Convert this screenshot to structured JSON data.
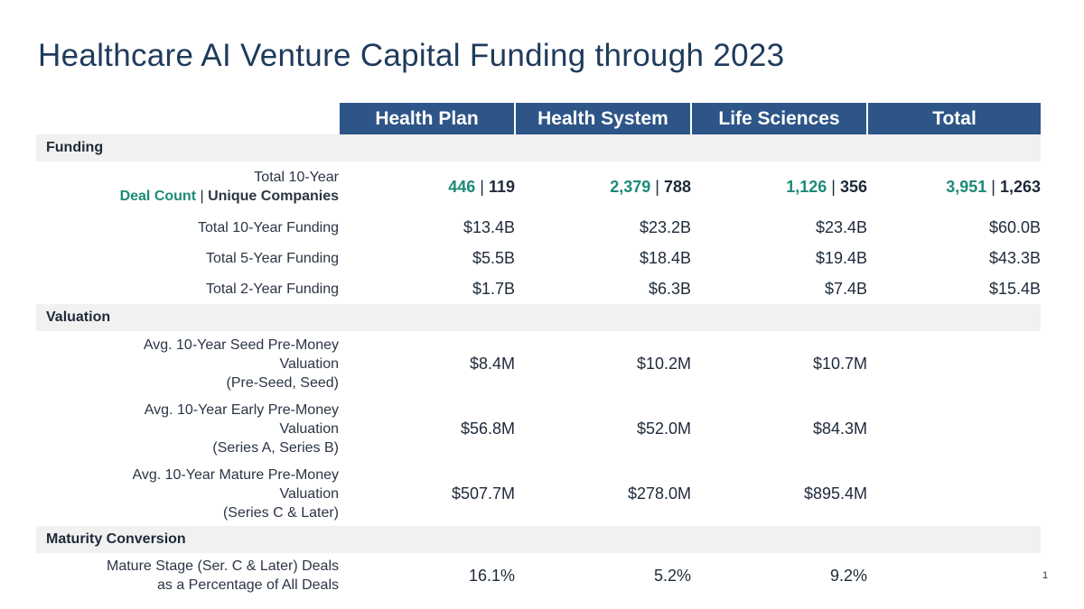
{
  "title": "Healthcare AI Venture Capital Funding through 2023",
  "page_number": "1",
  "colors": {
    "header_bg": "#2e5587",
    "accent_green": "#1d8a78",
    "section_bg": "#f1f1f1",
    "title": "#1f3b5c"
  },
  "columns": [
    "Health Plan",
    "Health System",
    "Life Sciences",
    "Total"
  ],
  "separator": "|",
  "sections": {
    "funding": "Funding",
    "valuation": "Valuation",
    "maturity": "Maturity Conversion"
  },
  "deal_row": {
    "label_line1": "Total 10-Year",
    "label_deal_count": "Deal Count",
    "label_unique": "Unique Companies",
    "values": [
      {
        "deals": "446",
        "companies": "119"
      },
      {
        "deals": "2,379",
        "companies": "788"
      },
      {
        "deals": "1,126",
        "companies": "356"
      },
      {
        "deals": "3,951",
        "companies": "1,263"
      }
    ]
  },
  "funding_rows": [
    {
      "label": "Total 10-Year Funding",
      "values": [
        "$13.4B",
        "$23.2B",
        "$23.4B",
        "$60.0B"
      ]
    },
    {
      "label": "Total 5-Year Funding",
      "values": [
        "$5.5B",
        "$18.4B",
        "$19.4B",
        "$43.3B"
      ]
    },
    {
      "label": "Total 2-Year Funding",
      "values": [
        "$1.7B",
        "$6.3B",
        "$7.4B",
        "$15.4B"
      ]
    }
  ],
  "valuation_rows": [
    {
      "line1": "Avg. 10-Year Seed Pre-Money",
      "line2": "Valuation",
      "line3": "(Pre-Seed, Seed)",
      "values": [
        "$8.4M",
        "$10.2M",
        "$10.7M",
        ""
      ]
    },
    {
      "line1": "Avg. 10-Year Early Pre-Money",
      "line2": "Valuation",
      "line3": "(Series A, Series B)",
      "values": [
        "$56.8M",
        "$52.0M",
        "$84.3M",
        ""
      ]
    },
    {
      "line1": "Avg. 10-Year Mature Pre-Money",
      "line2": "Valuation",
      "line3": "(Series C & Later)",
      "values": [
        "$507.7M",
        "$278.0M",
        "$895.4M",
        ""
      ]
    }
  ],
  "maturity_row": {
    "line1": "Mature Stage (Ser. C & Later) Deals",
    "line2": "as a Percentage of All Deals",
    "values": [
      "16.1%",
      "5.2%",
      "9.2%",
      ""
    ]
  }
}
